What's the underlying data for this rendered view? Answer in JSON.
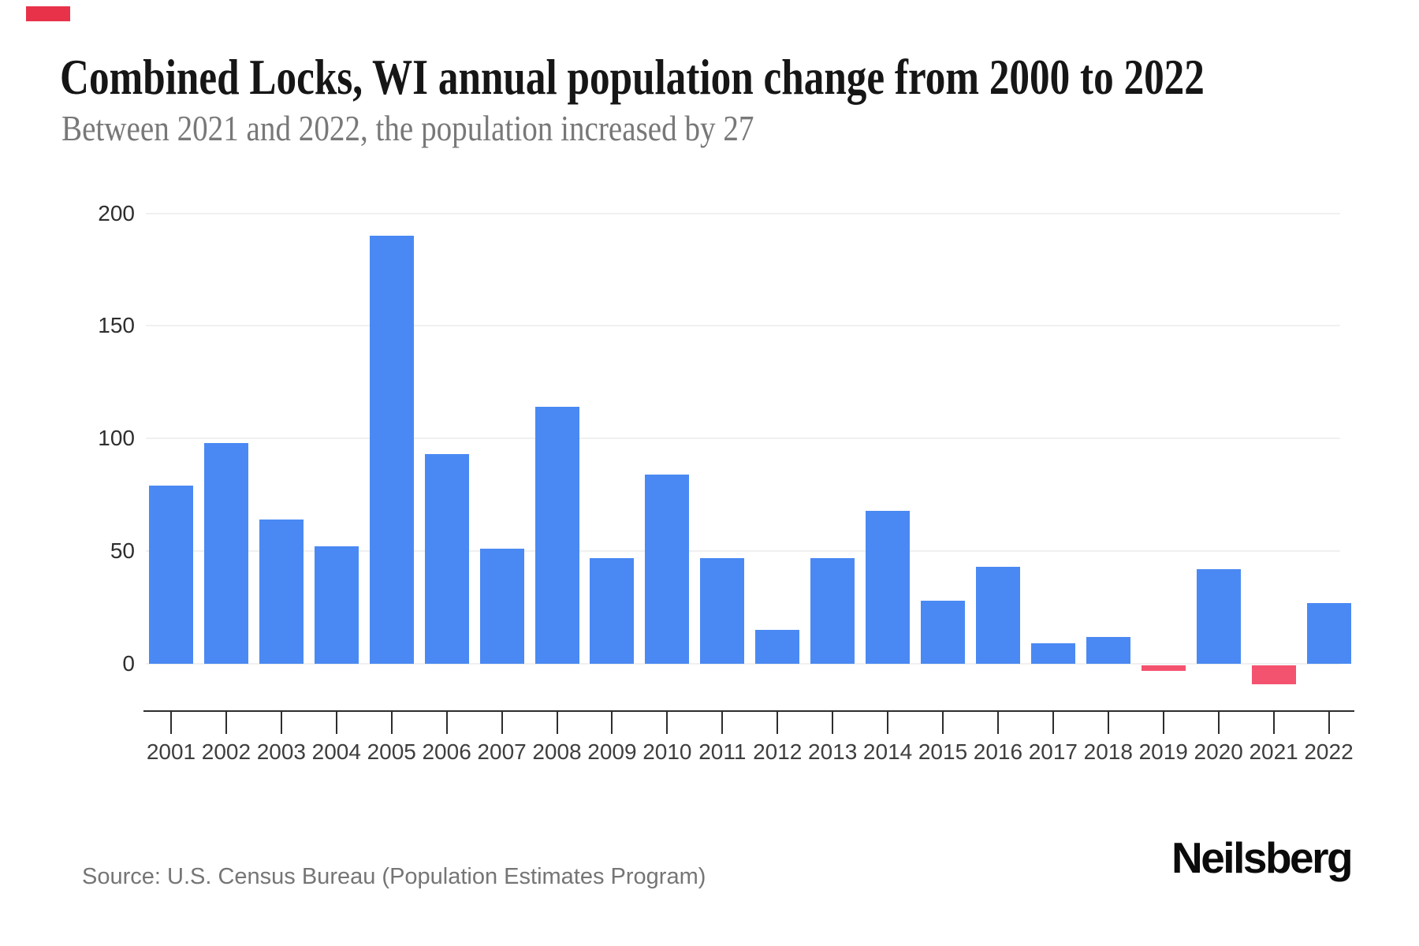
{
  "page": {
    "title": "Combined Locks, WI annual population change from 2000 to 2022",
    "subtitle": "Between 2021 and 2022, the population increased by 27"
  },
  "chart_data": {
    "type": "bar",
    "title": "Combined Locks, WI annual population change from 2000 to 2022",
    "subtitle": "Between 2021 and 2022, the population increased by 27",
    "categories": [
      "2001",
      "2002",
      "2003",
      "2004",
      "2005",
      "2006",
      "2007",
      "2008",
      "2009",
      "2010",
      "2011",
      "2012",
      "2013",
      "2014",
      "2015",
      "2016",
      "2017",
      "2018",
      "2019",
      "2020",
      "2021",
      "2022"
    ],
    "values": [
      79,
      98,
      64,
      52,
      190,
      93,
      51,
      114,
      47,
      84,
      47,
      15,
      47,
      68,
      28,
      43,
      9,
      12,
      -3,
      42,
      -9,
      27
    ],
    "xlabel": "",
    "ylabel": "",
    "yticks": [
      0,
      50,
      100,
      150,
      200
    ],
    "ylim": [
      -21,
      210
    ],
    "grid": true,
    "legend": false,
    "colors": {
      "bar_positive": "#4a89f3",
      "bar_negative": "#f4536f",
      "gridline": "#f0f0f0",
      "axis_line": "#2d2d2d",
      "x_tick_label": "#3e3e3e",
      "y_tick_label": "#2e2e2e",
      "title": "#161616",
      "subtitle": "#787878"
    }
  },
  "footer": {
    "source": "Source: U.S. Census Bureau (Population Estimates Program)",
    "brand": "Neilsberg"
  },
  "decorations": {
    "corner_marker_color": "#e73249"
  }
}
